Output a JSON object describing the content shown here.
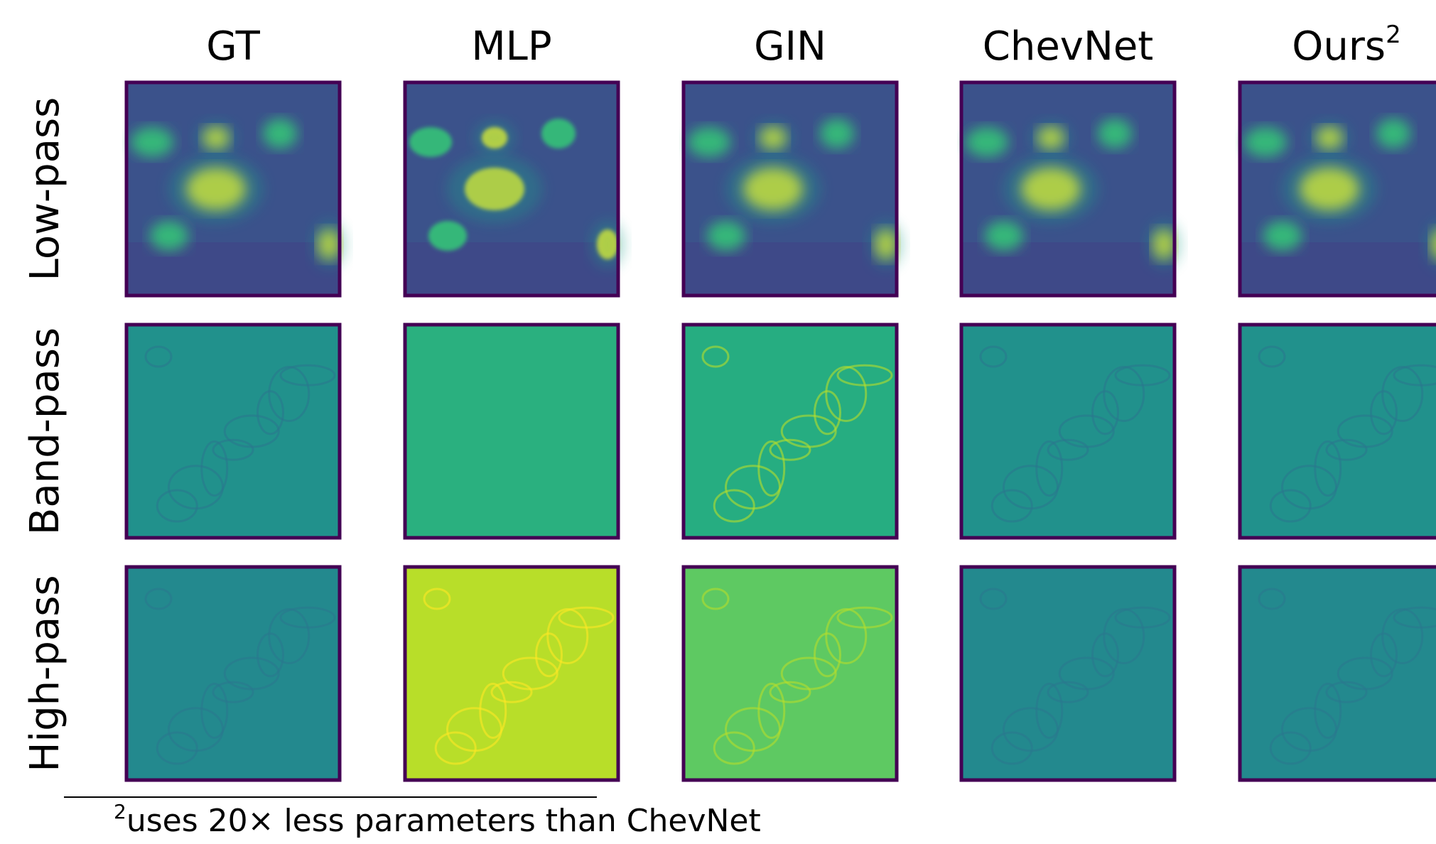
{
  "figure": {
    "columns": [
      "GT",
      "MLP",
      "GIN",
      "ChevNet",
      "Ours"
    ],
    "column_note_marker": "2",
    "rows": [
      "Low-pass",
      "Band-pass",
      "High-pass"
    ],
    "footnote": {
      "marker": "2",
      "text": "uses 20× less parameters than ChevNet"
    }
  }
}
